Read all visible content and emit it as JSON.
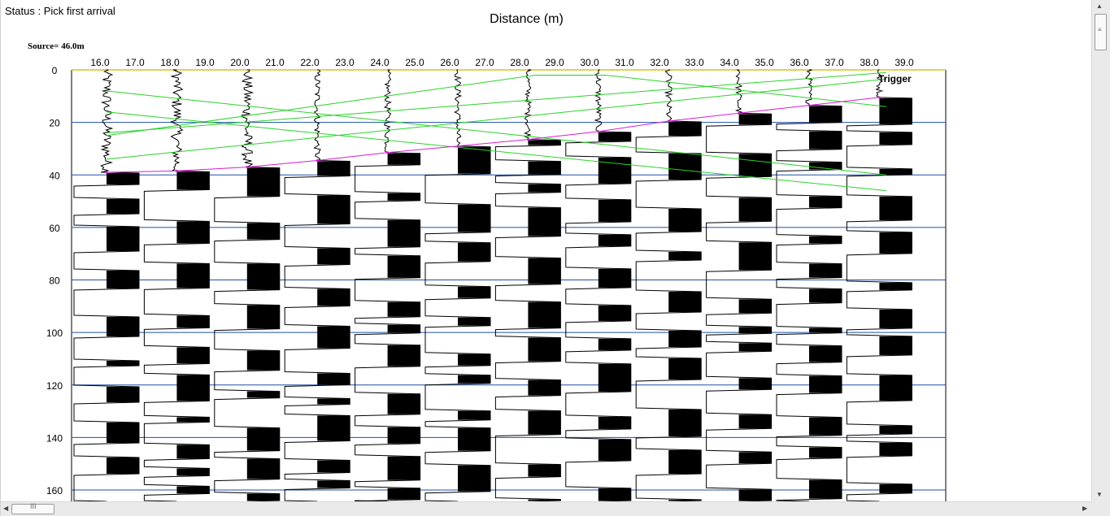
{
  "status": {
    "text": "Status : Pick first arrival"
  },
  "chart_data": {
    "type": "seismogram",
    "title": "Distance (m)",
    "source_label": "Source= 46.0m",
    "trigger_label": "Trigger",
    "x_tick_labels": [
      "16.0",
      "17.0",
      "18.0",
      "19.0",
      "20.0",
      "21.0",
      "22.0",
      "23.0",
      "24.0",
      "25.0",
      "26.0",
      "27.0",
      "28.0",
      "29.0",
      "30.0",
      "31.0",
      "32.0",
      "33.0",
      "34.0",
      "35.0",
      "36.0",
      "37.0",
      "38.0",
      "39.0"
    ],
    "xlim": [
      16.0,
      39.0
    ],
    "y_ticks": [
      0,
      20,
      40,
      60,
      80,
      100,
      120,
      140,
      160
    ],
    "ylim": [
      0,
      162
    ],
    "trace_offsets": [
      16,
      18,
      20,
      22,
      24,
      26,
      28,
      30,
      32,
      34,
      36,
      38
    ],
    "first_arrival_picks": [
      {
        "offset": 16,
        "time": 39
      },
      {
        "offset": 18,
        "time": 38.5
      },
      {
        "offset": 20,
        "time": 37
      },
      {
        "offset": 22,
        "time": 34.5
      },
      {
        "offset": 24,
        "time": 31.5
      },
      {
        "offset": 26,
        "time": 29
      },
      {
        "offset": 28,
        "time": 26.5
      },
      {
        "offset": 30,
        "time": 23.5
      },
      {
        "offset": 32,
        "time": 19.5
      },
      {
        "offset": 34,
        "time": 16.5
      },
      {
        "offset": 36,
        "time": 13.5
      },
      {
        "offset": 38,
        "time": 10.5
      }
    ],
    "guide_lines": [
      {
        "from": {
          "offset": 16,
          "time": 8
        },
        "to": {
          "offset": 38.2,
          "time": 40
        }
      },
      {
        "from": {
          "offset": 16,
          "time": 16
        },
        "to": {
          "offset": 38.2,
          "time": 46
        }
      },
      {
        "from": {
          "offset": 16,
          "time": 24
        },
        "to": {
          "offset": 38.2,
          "time": 1
        }
      },
      {
        "from": {
          "offset": 16,
          "time": 34
        },
        "to": {
          "offset": 38.2,
          "time": 3.5
        }
      },
      {
        "from": {
          "offset": 16,
          "time": 25
        },
        "to": {
          "offset": 28.2,
          "time": 2
        }
      },
      {
        "from": {
          "offset": 28.2,
          "time": 2
        },
        "to": {
          "offset": 30.2,
          "time": 2
        }
      },
      {
        "from": {
          "offset": 30.2,
          "time": 2
        },
        "to": {
          "offset": 38.2,
          "time": 14
        }
      }
    ],
    "grid": true,
    "colors": {
      "grid": "#1f4fa8",
      "pick": "#d81bd8",
      "guide": "#2ad22a",
      "zero_line": "#d8c020",
      "trace": "#000000"
    }
  },
  "scrollbars": {
    "vertical": {
      "thumb_fraction": 0.08
    },
    "horizontal": {
      "thumb_fraction": 0.04
    }
  }
}
